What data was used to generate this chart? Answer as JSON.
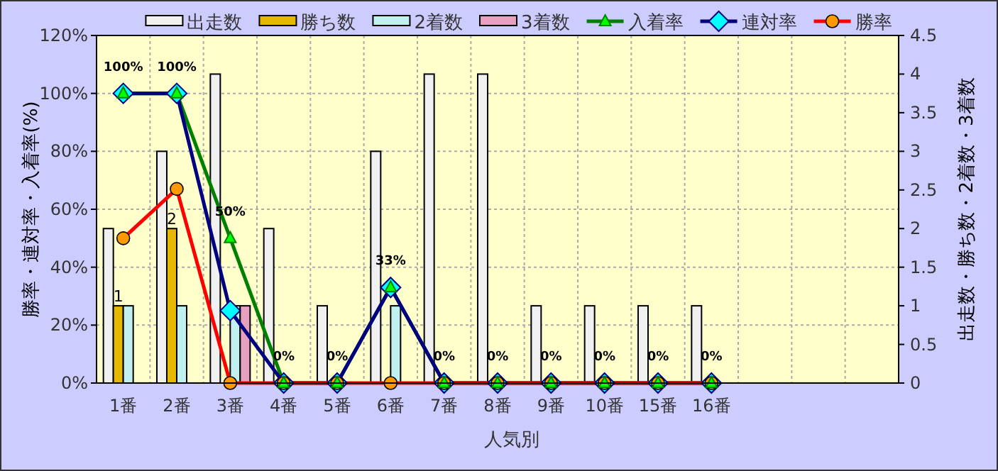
{
  "chart_data": {
    "type": "bar",
    "xlabel": "人気別",
    "ylabel": "勝率・連対率・入着率(%)",
    "y2label": "出走数・勝ち数・2着数・3着数",
    "categories": [
      "1番",
      "2番",
      "3番",
      "4番",
      "5番",
      "6番",
      "7番",
      "8番",
      "9番",
      "10番",
      "15番",
      "16番",
      null,
      null,
      null
    ],
    "series": [
      {
        "name": "出走数",
        "axis": "y2",
        "color": "#f0f0f0",
        "values": [
          2,
          3,
          4,
          2,
          1,
          3,
          4,
          4,
          1,
          1,
          1,
          1,
          null,
          null,
          null
        ]
      },
      {
        "name": "勝ち数",
        "axis": "y2",
        "color": "#e6b800",
        "values": [
          1,
          2,
          0,
          0,
          0,
          0,
          0,
          0,
          0,
          0,
          0,
          0,
          null,
          null,
          null
        ],
        "value_labels": [
          "1",
          "2",
          null,
          null,
          null,
          null,
          null,
          null,
          null,
          null,
          null,
          null,
          null,
          null,
          null
        ]
      },
      {
        "name": "2着数",
        "axis": "y2",
        "color": "#c0f0f0",
        "values": [
          1,
          1,
          1,
          0,
          0,
          1,
          0,
          0,
          0,
          0,
          0,
          0,
          null,
          null,
          null
        ]
      },
      {
        "name": "3着数",
        "axis": "y2",
        "color": "#e8a0c0",
        "values": [
          0,
          0,
          1,
          0,
          0,
          0,
          0,
          0,
          0,
          0,
          0,
          0,
          null,
          null,
          null
        ]
      },
      {
        "name": "入着率",
        "type": "line",
        "color": "#008000",
        "marker": "triangle",
        "values": [
          100,
          100,
          50,
          0,
          0,
          33,
          0,
          0,
          0,
          0,
          0,
          0,
          null,
          null,
          null
        ],
        "value_labels": [
          "100%",
          "100%",
          "50%",
          "0%",
          "0%",
          "33%",
          "0%",
          "0%",
          "0%",
          "0%",
          "0%",
          "0%",
          null,
          null,
          null
        ]
      },
      {
        "name": "連対率",
        "type": "line",
        "color": "#000080",
        "marker": "diamond",
        "values": [
          100,
          100,
          25,
          0,
          0,
          33,
          0,
          0,
          0,
          0,
          0,
          0,
          null,
          null,
          null
        ]
      },
      {
        "name": "勝率",
        "type": "line",
        "color": "#ff0000",
        "marker": "circle",
        "values": [
          50,
          67,
          0,
          0,
          0,
          0,
          0,
          0,
          0,
          0,
          0,
          0,
          null,
          null,
          null
        ]
      }
    ],
    "ylim": [
      0,
      120
    ],
    "yticks": [
      {
        "value": 0,
        "label": "0%"
      },
      {
        "value": 20,
        "label": "20%"
      },
      {
        "value": 40,
        "label": "40%"
      },
      {
        "value": 60,
        "label": "60%"
      },
      {
        "value": 80,
        "label": "80%"
      },
      {
        "value": 100,
        "label": "100%"
      },
      {
        "value": 120,
        "label": "120%"
      }
    ],
    "y2lim": [
      0,
      4.5
    ],
    "y2ticks": [
      0,
      0.5,
      1,
      1.5,
      2,
      2.5,
      3,
      3.5,
      4,
      4.5
    ],
    "grid": true,
    "legend": "top"
  }
}
